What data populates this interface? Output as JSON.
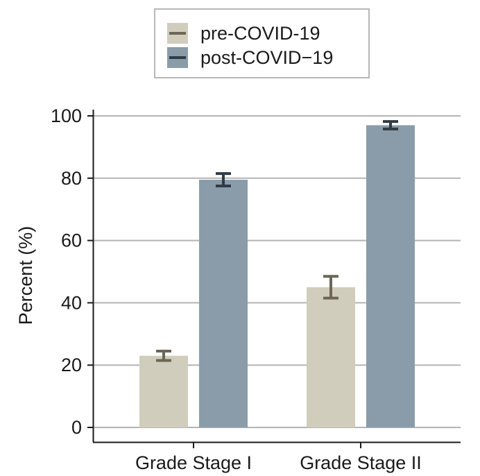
{
  "chart_data": {
    "type": "bar",
    "title": "",
    "xlabel": "",
    "ylabel": "Percent (%)",
    "ylim": [
      0,
      100
    ],
    "yticks": [
      0,
      20,
      40,
      60,
      80,
      100
    ],
    "grid": true,
    "legend_position": "top-center",
    "categories": [
      "Grade Stage I",
      "Grade Stage II"
    ],
    "series": [
      {
        "name": "pre-COVID-19",
        "values": [
          23,
          45
        ],
        "error_low": [
          21.5,
          41.5
        ],
        "error_high": [
          24.5,
          48.5
        ],
        "color": "#d1cdbd",
        "error_color": "#6b6656"
      },
      {
        "name": "post-COVID−19",
        "values": [
          79.5,
          97
        ],
        "error_low": [
          77.5,
          95.8
        ],
        "error_high": [
          81.5,
          98.2
        ],
        "color": "#8a9caa",
        "error_color": "#2f3b45"
      }
    ]
  }
}
